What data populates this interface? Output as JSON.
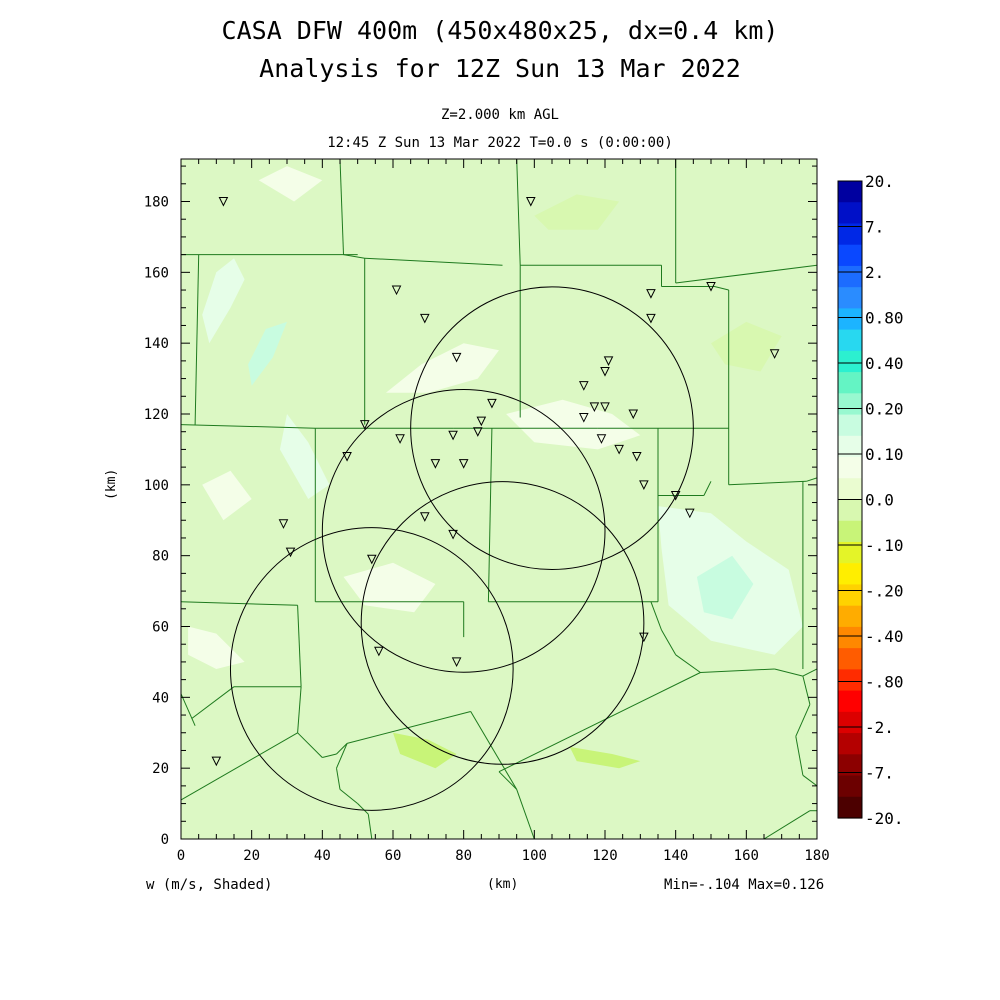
{
  "header": {
    "title_line1": "CASA DFW 400m (450x480x25, dx=0.4 km)",
    "title_line2": "Analysis for 12Z Sun 13 Mar 2022",
    "subtitle_level": "Z=2.000 km AGL",
    "subtitle_time": "12:45 Z Sun 13 Mar 2022    T=0.0 s (0:00:00)"
  },
  "footer": {
    "field_label": "w (m/s, Shaded)",
    "x_unit": "(km)",
    "minmax": "Min=-.104 Max=0.126"
  },
  "y_unit": "(km)",
  "chart_data": {
    "type": "heatmap",
    "field": "w (m/s)",
    "xlabel": "(km)",
    "ylabel": "(km)",
    "xlim": [
      0,
      180
    ],
    "ylim": [
      0,
      192
    ],
    "x_ticks": [
      0,
      20,
      40,
      60,
      80,
      100,
      120,
      140,
      160,
      180
    ],
    "y_ticks": [
      0,
      20,
      40,
      60,
      80,
      100,
      120,
      140,
      160,
      180
    ],
    "min": -0.104,
    "max": 0.126,
    "colorbar": {
      "labels": [
        "20.",
        "7.",
        "2.",
        "0.80",
        "0.40",
        "0.20",
        "0.10",
        "0.0",
        "-.10",
        "-.20",
        "-.40",
        "-.80",
        "-2.",
        "-7.",
        "-20."
      ],
      "colors": [
        "#0000a0",
        "#0010c8",
        "#0028e6",
        "#0a48ff",
        "#1c6cff",
        "#2a8cff",
        "#1cb4ff",
        "#28d8f0",
        "#2cf0d0",
        "#64f4c4",
        "#98f8d0",
        "#c8fce0",
        "#e6fee8",
        "#f4fee8",
        "#eafcd0",
        "#d8f8b0",
        "#c8f478",
        "#e4f428",
        "#ffee00",
        "#ffd200",
        "#ffac00",
        "#ff8800",
        "#ff5c00",
        "#ff2c00",
        "#ff0000",
        "#dc0000",
        "#b40000",
        "#8c0000",
        "#6c0000",
        "#4c0000"
      ]
    },
    "background_color": "#dcf8c4",
    "radar_coverage_circles": [
      {
        "cx": 105,
        "cy": 116,
        "r": 40
      },
      {
        "cx": 80,
        "cy": 87,
        "r": 40
      },
      {
        "cx": 91,
        "cy": 61,
        "r": 40
      },
      {
        "cx": 54,
        "cy": 48,
        "r": 40
      }
    ],
    "station_markers": [
      [
        12,
        180
      ],
      [
        99,
        180
      ],
      [
        61,
        155
      ],
      [
        69,
        147
      ],
      [
        133,
        154
      ],
      [
        133,
        147
      ],
      [
        150,
        156
      ],
      [
        78,
        136
      ],
      [
        121,
        135
      ],
      [
        120,
        132
      ],
      [
        168,
        137
      ],
      [
        114,
        128
      ],
      [
        117,
        122
      ],
      [
        120,
        122
      ],
      [
        114,
        119
      ],
      [
        128,
        120
      ],
      [
        88,
        123
      ],
      [
        85,
        118
      ],
      [
        84,
        115
      ],
      [
        77,
        114
      ],
      [
        62,
        113
      ],
      [
        52,
        117
      ],
      [
        119,
        113
      ],
      [
        124,
        110
      ],
      [
        129,
        108
      ],
      [
        47,
        108
      ],
      [
        72,
        106
      ],
      [
        80,
        106
      ],
      [
        131,
        100
      ],
      [
        140,
        97
      ],
      [
        144,
        92
      ],
      [
        29,
        89
      ],
      [
        69,
        91
      ],
      [
        77,
        86
      ],
      [
        31,
        81
      ],
      [
        54,
        79
      ],
      [
        131,
        57
      ],
      [
        56,
        53
      ],
      [
        78,
        50
      ],
      [
        10,
        22
      ]
    ],
    "county_boundaries": [
      [
        [
          0,
          165
        ],
        [
          50,
          165
        ]
      ],
      [
        [
          5,
          165
        ],
        [
          4,
          117
        ]
      ],
      [
        [
          45,
          192
        ],
        [
          46,
          165
        ]
      ],
      [
        [
          46,
          165
        ],
        [
          52,
          164
        ]
      ],
      [
        [
          52,
          164
        ],
        [
          52,
          117
        ]
      ],
      [
        [
          52,
          164
        ],
        [
          91,
          162
        ]
      ],
      [
        [
          95,
          192
        ],
        [
          96,
          162
        ]
      ],
      [
        [
          96,
          162
        ],
        [
          136,
          162
        ]
      ],
      [
        [
          96,
          162
        ],
        [
          96,
          119
        ]
      ],
      [
        [
          140,
          192
        ],
        [
          140,
          157
        ]
      ],
      [
        [
          140,
          157
        ],
        [
          180,
          162
        ]
      ],
      [
        [
          136,
          162
        ],
        [
          136,
          156
        ]
      ],
      [
        [
          136,
          156
        ],
        [
          151,
          156
        ]
      ],
      [
        [
          151,
          156
        ],
        [
          155,
          155
        ]
      ],
      [
        [
          155,
          155
        ],
        [
          155,
          100
        ]
      ],
      [
        [
          155,
          100
        ],
        [
          177,
          101
        ]
      ],
      [
        [
          177,
          101
        ],
        [
          180,
          102
        ]
      ],
      [
        [
          0,
          117
        ],
        [
          38,
          116
        ]
      ],
      [
        [
          38,
          116
        ],
        [
          77,
          116
        ]
      ],
      [
        [
          77,
          116
        ],
        [
          118,
          116
        ]
      ],
      [
        [
          118,
          116
        ],
        [
          155,
          116
        ]
      ],
      [
        [
          38,
          116
        ],
        [
          38,
          67
        ]
      ],
      [
        [
          38,
          67
        ],
        [
          80,
          67
        ]
      ],
      [
        [
          80,
          67
        ],
        [
          80,
          57
        ]
      ],
      [
        [
          88,
          116
        ],
        [
          87,
          67
        ]
      ],
      [
        [
          87,
          67
        ],
        [
          135,
          67
        ]
      ],
      [
        [
          135,
          116
        ],
        [
          135,
          67
        ]
      ],
      [
        [
          135,
          97
        ],
        [
          148,
          97
        ]
      ],
      [
        [
          148,
          97
        ],
        [
          150,
          101
        ]
      ],
      [
        [
          0,
          67
        ],
        [
          33,
          66
        ]
      ],
      [
        [
          33,
          66
        ],
        [
          34,
          43
        ]
      ],
      [
        [
          34,
          43
        ],
        [
          15,
          43
        ]
      ],
      [
        [
          15,
          43
        ],
        [
          3,
          34
        ]
      ],
      [
        [
          34,
          43
        ],
        [
          33,
          30
        ]
      ],
      [
        [
          33,
          30
        ],
        [
          0,
          11
        ]
      ],
      [
        [
          33,
          30
        ],
        [
          40,
          23
        ]
      ],
      [
        [
          40,
          23
        ],
        [
          44,
          24
        ]
      ],
      [
        [
          44,
          24
        ],
        [
          47,
          27
        ]
      ],
      [
        [
          47,
          27
        ],
        [
          44,
          20
        ]
      ],
      [
        [
          44,
          20
        ],
        [
          45,
          14
        ]
      ],
      [
        [
          45,
          14
        ],
        [
          50,
          10
        ]
      ],
      [
        [
          50,
          10
        ],
        [
          53,
          7
        ]
      ],
      [
        [
          53,
          7
        ],
        [
          54,
          0
        ]
      ],
      [
        [
          47,
          27
        ],
        [
          82,
          36
        ]
      ],
      [
        [
          0,
          41
        ],
        [
          4,
          32
        ]
      ],
      [
        [
          133,
          67
        ],
        [
          136,
          59
        ]
      ],
      [
        [
          136,
          59
        ],
        [
          140,
          52
        ]
      ],
      [
        [
          140,
          52
        ],
        [
          147,
          47
        ]
      ],
      [
        [
          147,
          47
        ],
        [
          168,
          48
        ]
      ],
      [
        [
          168,
          48
        ],
        [
          176,
          46
        ]
      ],
      [
        [
          176,
          46
        ],
        [
          180,
          48
        ]
      ],
      [
        [
          176,
          101
        ],
        [
          176,
          48
        ]
      ],
      [
        [
          147,
          47
        ],
        [
          90,
          19
        ]
      ],
      [
        [
          90,
          19
        ],
        [
          95,
          14
        ]
      ],
      [
        [
          82,
          36
        ],
        [
          95,
          14
        ]
      ],
      [
        [
          95,
          14
        ],
        [
          100,
          0
        ]
      ],
      [
        [
          176,
          46
        ],
        [
          178,
          38
        ]
      ],
      [
        [
          178,
          38
        ],
        [
          174,
          29
        ]
      ],
      [
        [
          174,
          29
        ],
        [
          176,
          18
        ]
      ],
      [
        [
          176,
          18
        ],
        [
          180,
          15
        ]
      ],
      [
        [
          165,
          0
        ],
        [
          178,
          8
        ]
      ],
      [
        [
          178,
          8
        ],
        [
          180,
          8
        ]
      ]
    ],
    "shading_patches": [
      {
        "points": [
          [
            8,
            140
          ],
          [
            14,
            150
          ],
          [
            18,
            158
          ],
          [
            15,
            164
          ],
          [
            10,
            160
          ],
          [
            6,
            148
          ]
        ],
        "color": "#e6fee8"
      },
      {
        "points": [
          [
            20,
            128
          ],
          [
            26,
            136
          ],
          [
            30,
            146
          ],
          [
            24,
            144
          ],
          [
            19,
            134
          ]
        ],
        "color": "#c8fce0"
      },
      {
        "points": [
          [
            58,
            126
          ],
          [
            68,
            134
          ],
          [
            80,
            140
          ],
          [
            90,
            138
          ],
          [
            84,
            130
          ],
          [
            70,
            126
          ]
        ],
        "color": "#f4fee8"
      },
      {
        "points": [
          [
            92,
            120
          ],
          [
            108,
            124
          ],
          [
            122,
            120
          ],
          [
            130,
            114
          ],
          [
            118,
            110
          ],
          [
            100,
            112
          ]
        ],
        "color": "#f4fee8"
      },
      {
        "points": [
          [
            30,
            120
          ],
          [
            36,
            112
          ],
          [
            42,
            100
          ],
          [
            36,
            96
          ],
          [
            28,
            110
          ]
        ],
        "color": "#e6fee8"
      },
      {
        "points": [
          [
            135,
            94
          ],
          [
            150,
            92
          ],
          [
            160,
            84
          ],
          [
            172,
            76
          ],
          [
            176,
            60
          ],
          [
            168,
            52
          ],
          [
            150,
            56
          ],
          [
            138,
            66
          ],
          [
            136,
            82
          ]
        ],
        "color": "#e6fee8"
      },
      {
        "points": [
          [
            146,
            74
          ],
          [
            156,
            80
          ],
          [
            162,
            72
          ],
          [
            156,
            62
          ],
          [
            148,
            64
          ]
        ],
        "color": "#c8fce0"
      },
      {
        "points": [
          [
            46,
            74
          ],
          [
            60,
            78
          ],
          [
            72,
            72
          ],
          [
            66,
            64
          ],
          [
            52,
            66
          ]
        ],
        "color": "#f4fee8"
      },
      {
        "points": [
          [
            6,
            100
          ],
          [
            14,
            104
          ],
          [
            20,
            96
          ],
          [
            12,
            90
          ]
        ],
        "color": "#f4fee8"
      },
      {
        "points": [
          [
            60,
            30
          ],
          [
            70,
            28
          ],
          [
            78,
            24
          ],
          [
            72,
            20
          ],
          [
            62,
            24
          ]
        ],
        "color": "#c8f478"
      },
      {
        "points": [
          [
            110,
            26
          ],
          [
            122,
            24
          ],
          [
            130,
            22
          ],
          [
            124,
            20
          ],
          [
            112,
            22
          ]
        ],
        "color": "#c8f478"
      },
      {
        "points": [
          [
            100,
            176
          ],
          [
            112,
            182
          ],
          [
            124,
            180
          ],
          [
            118,
            172
          ],
          [
            104,
            172
          ]
        ],
        "color": "#d8f8b0"
      },
      {
        "points": [
          [
            150,
            140
          ],
          [
            160,
            146
          ],
          [
            170,
            142
          ],
          [
            164,
            132
          ],
          [
            154,
            134
          ]
        ],
        "color": "#d8f8b0"
      },
      {
        "points": [
          [
            2,
            60
          ],
          [
            10,
            58
          ],
          [
            18,
            50
          ],
          [
            10,
            48
          ],
          [
            2,
            52
          ]
        ],
        "color": "#f4fee8"
      },
      {
        "points": [
          [
            22,
            186
          ],
          [
            30,
            190
          ],
          [
            40,
            186
          ],
          [
            32,
            180
          ]
        ],
        "color": "#f4fee8"
      }
    ]
  }
}
